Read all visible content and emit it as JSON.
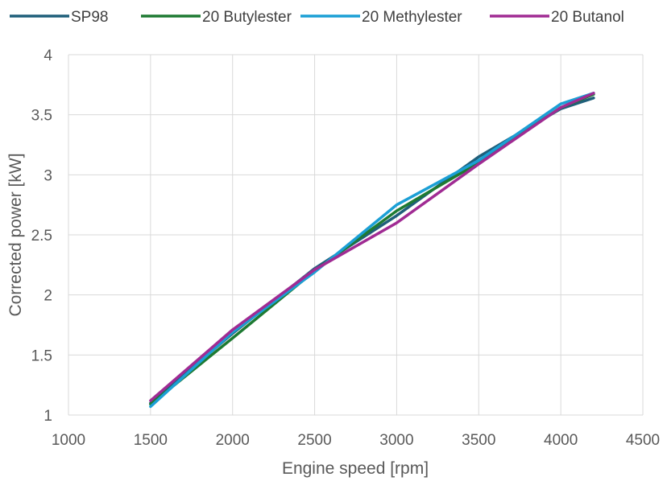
{
  "chart_data": {
    "type": "line",
    "title": "",
    "xlabel": "Engine speed [rpm]",
    "ylabel": "Corrected power [kW]",
    "xlim": [
      1000,
      4500
    ],
    "ylim": [
      1,
      4
    ],
    "x_ticks": [
      1000,
      1500,
      2000,
      2500,
      3000,
      3500,
      4000,
      4500
    ],
    "y_ticks": [
      1,
      1.5,
      2,
      2.5,
      3,
      3.5,
      4
    ],
    "x_tick_labels": [
      "1000",
      "1500",
      "2000",
      "2500",
      "3000",
      "3500",
      "4000",
      "4500"
    ],
    "y_tick_labels": [
      "1",
      "1.5",
      "2",
      "2.5",
      "3",
      "3.5",
      "4"
    ],
    "grid": true,
    "legend": "top",
    "x": [
      1500,
      2000,
      2500,
      3000,
      3500,
      4000,
      4200
    ],
    "series": [
      {
        "name": "SP98",
        "color": "#1f5f7a",
        "values": [
          1.1,
          1.68,
          2.22,
          2.66,
          3.15,
          3.55,
          3.64
        ]
      },
      {
        "name": "20 Butylester",
        "color": "#1e7a32",
        "values": [
          1.09,
          1.64,
          2.2,
          2.7,
          3.1,
          3.56,
          3.67
        ]
      },
      {
        "name": "20 Methylester",
        "color": "#1b9fd5",
        "values": [
          1.07,
          1.69,
          2.19,
          2.75,
          3.12,
          3.59,
          3.68
        ]
      },
      {
        "name": "20 Butanol",
        "color": "#a02b93",
        "values": [
          1.12,
          1.71,
          2.21,
          2.6,
          3.09,
          3.56,
          3.68
        ]
      }
    ]
  }
}
